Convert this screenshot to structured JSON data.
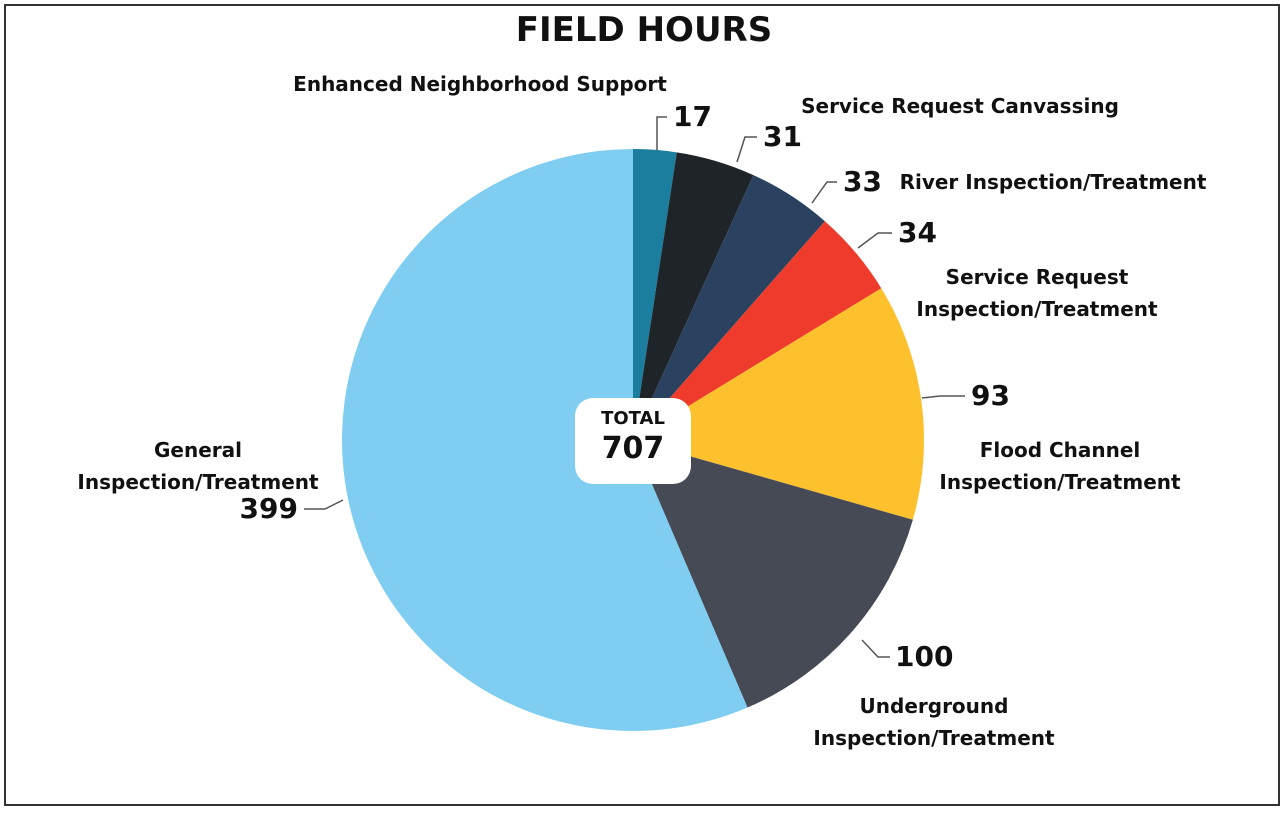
{
  "chart_data": {
    "type": "pie",
    "title": "FIELD HOURS",
    "categories": [
      "Enhanced Neighborhood Support",
      "Service Request Canvassing",
      "River Inspection/Treatment",
      "Service Request Inspection/Treatment",
      "Flood Channel Inspection/Treatment",
      "Underground Inspection/Treatment",
      "General Inspection/Treatment"
    ],
    "values": [
      17,
      31,
      33,
      34,
      93,
      100,
      399
    ],
    "colors": [
      "#1b7e9e",
      "#1f2428",
      "#2a4260",
      "#ee3b2b",
      "#fdc12d",
      "#454a55",
      "#7fcdf0"
    ],
    "total_label": "TOTAL",
    "total": 707
  }
}
